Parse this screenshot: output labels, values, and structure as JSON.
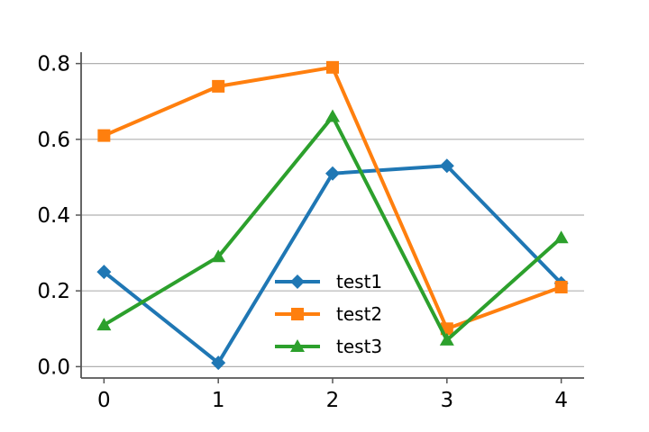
{
  "chart_data": {
    "type": "line",
    "title": "",
    "xlabel": "",
    "ylabel": "",
    "x": [
      0,
      1,
      2,
      3,
      4
    ],
    "xlim": [
      -0.2,
      4.2
    ],
    "ylim": [
      -0.03,
      0.83
    ],
    "yticks": [
      0.0,
      0.2,
      0.4,
      0.6,
      0.8
    ],
    "ytick_labels": [
      "0.0",
      "0.2",
      "0.4",
      "0.6",
      "0.8"
    ],
    "xticks": [
      0,
      1,
      2,
      3,
      4
    ],
    "xtick_labels": [
      "0",
      "1",
      "2",
      "3",
      "4"
    ],
    "grid": "horizontal",
    "legend_position": "lower-center",
    "series": [
      {
        "name": "test1",
        "color": "#1f77b4",
        "marker": "diamond",
        "values": [
          0.25,
          0.01,
          0.51,
          0.53,
          0.22
        ]
      },
      {
        "name": "test2",
        "color": "#ff7f0e",
        "marker": "square",
        "values": [
          0.61,
          0.74,
          0.79,
          0.1,
          0.21
        ]
      },
      {
        "name": "test3",
        "color": "#2ca02c",
        "marker": "triangle",
        "values": [
          0.11,
          0.29,
          0.66,
          0.07,
          0.34
        ]
      }
    ]
  }
}
